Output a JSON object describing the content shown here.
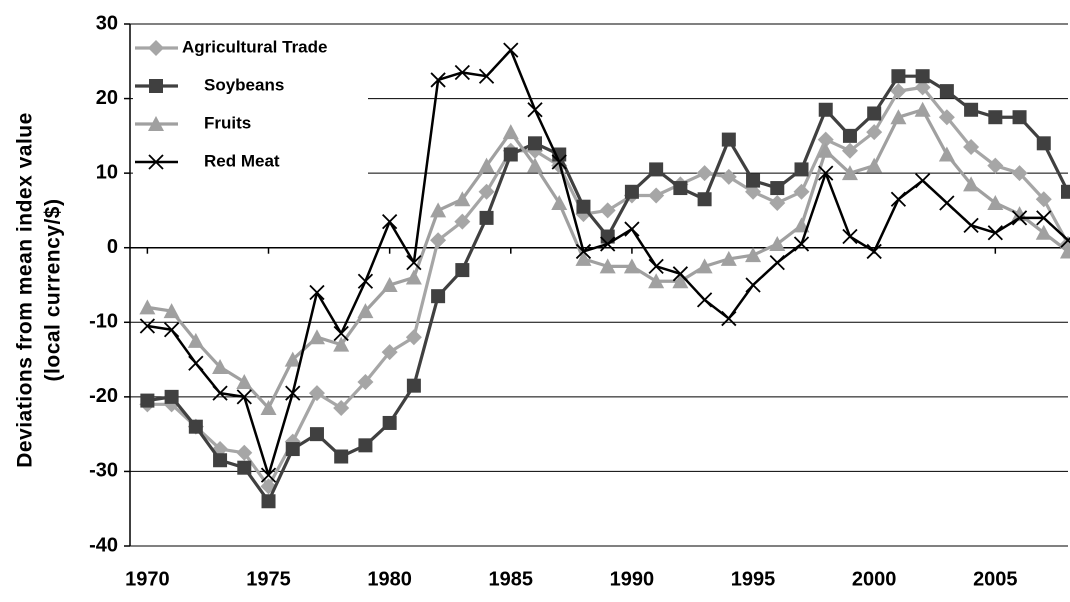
{
  "chart_data": {
    "type": "line",
    "ylabel_lines": [
      "Deviations from mean index value",
      "(local currency/$)"
    ],
    "x": [
      1970,
      1971,
      1972,
      1973,
      1974,
      1975,
      1976,
      1977,
      1978,
      1979,
      1980,
      1981,
      1982,
      1983,
      1984,
      1985,
      1986,
      1987,
      1988,
      1989,
      1990,
      1991,
      1992,
      1993,
      1994,
      1995,
      1996,
      1997,
      1998,
      1999,
      2000,
      2001,
      2002,
      2003,
      2004,
      2005,
      2006,
      2007,
      2008
    ],
    "series": [
      {
        "name": "Agricultural Trade",
        "color": "#a6a6a6",
        "marker": "diamond",
        "values": [
          -21,
          -21,
          -24,
          -27,
          -27.5,
          -32,
          -26,
          -19.5,
          -21.5,
          -18,
          -14,
          -12,
          1,
          3.5,
          7.5,
          13,
          13,
          11,
          4.5,
          5,
          7,
          7,
          8.5,
          10,
          9.5,
          7.5,
          6,
          7.5,
          14.5,
          13,
          15.5,
          21,
          21.5,
          17.5,
          13.5,
          11,
          10,
          6.5,
          0.5
        ]
      },
      {
        "name": "Soybeans",
        "color": "#404040",
        "marker": "square",
        "values": [
          -20.5,
          -20,
          -24,
          -28.5,
          -29.5,
          -34,
          -27,
          -25,
          -28,
          -26.5,
          -23.5,
          -18.5,
          -6.5,
          -3,
          4,
          12.5,
          14,
          12.5,
          5.5,
          1.5,
          7.5,
          10.5,
          8,
          6.5,
          14.5,
          9,
          8,
          10.5,
          18.5,
          15,
          18,
          23,
          23,
          21,
          18.5,
          17.5,
          17.5,
          14,
          7.5
        ]
      },
      {
        "name": "Fruits",
        "color": "#a0a0a0",
        "marker": "triangle",
        "values": [
          -8,
          -8.5,
          -12.5,
          -16,
          -18,
          -21.5,
          -15,
          -12,
          -13,
          -8.5,
          -5,
          -4,
          5,
          6.5,
          11,
          15.5,
          11,
          6,
          -1.5,
          -2.5,
          -2.5,
          -4.5,
          -4.5,
          -2.5,
          -1.5,
          -1,
          0.5,
          3,
          13,
          10,
          11,
          17.5,
          18.5,
          12.5,
          8.5,
          6,
          4.5,
          2,
          -0.5
        ]
      },
      {
        "name": "Red Meat",
        "color": "#000000",
        "marker": "x",
        "values": [
          -10.5,
          -11,
          -15.5,
          -19.5,
          -20,
          -30.5,
          -19.5,
          -6,
          -11.5,
          -4.5,
          3.5,
          -2,
          22.5,
          23.5,
          23,
          26.5,
          18.5,
          11.5,
          -0.5,
          0.5,
          2.5,
          -2.5,
          -3.5,
          -7,
          -9.5,
          -5,
          -2,
          0.5,
          10,
          1.5,
          -0.5,
          6.5,
          9,
          6,
          3,
          2,
          4,
          4,
          1
        ]
      }
    ],
    "xlim": [
      1969.2,
      2008
    ],
    "xticks": [
      1970,
      1975,
      1980,
      1985,
      1990,
      1995,
      2000,
      2005
    ],
    "ylim": [
      -40,
      30
    ],
    "yticks": [
      -40,
      -30,
      -20,
      -10,
      0,
      10,
      20,
      30
    ],
    "grid": true,
    "legend": "top-left"
  }
}
